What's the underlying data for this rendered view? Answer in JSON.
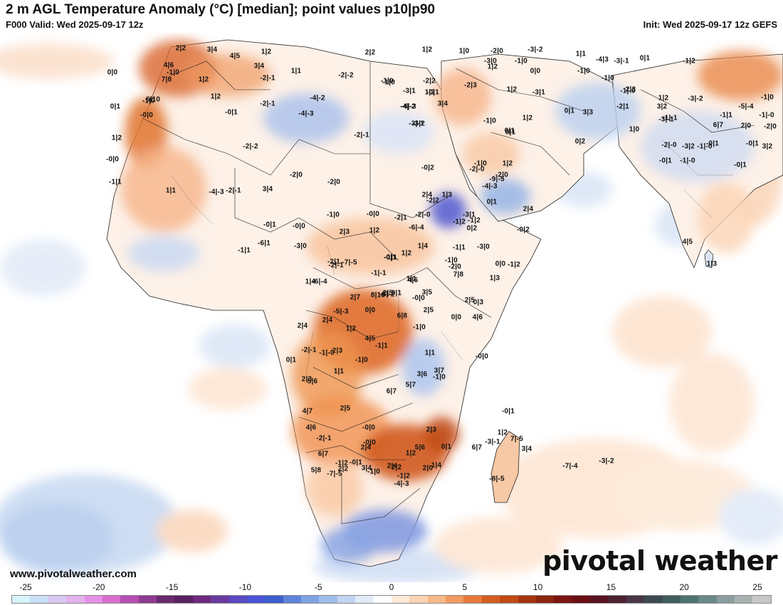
{
  "header": {
    "title": "2 m AGL Temperature Anomaly (°C) [median]; point values p10|p90",
    "valid": "F000 Valid: Wed 2025-09-17 12z",
    "init": "Init: Wed 2025-09-17 12z GEFS"
  },
  "footer": {
    "website": "www.pivotalweather.com",
    "logo": "pivotal weather"
  },
  "colorbar": {
    "ticks": [
      "-25",
      "-20",
      "-15",
      "-10",
      "-5",
      "0",
      "5",
      "10",
      "15",
      "20",
      "25"
    ],
    "colors": [
      "#d6f5fb",
      "#c8dff7",
      "#d7c9f2",
      "#e3b3ee",
      "#e491e6",
      "#d86fcf",
      "#b54fb2",
      "#8e3a8f",
      "#6a2a6e",
      "#5a2063",
      "#6e2a7e",
      "#6a3aa0",
      "#5b49c2",
      "#4b56d6",
      "#3f5fcc",
      "#5f83da",
      "#7ea3e3",
      "#a0bdec",
      "#c2d5f2",
      "#e2ebf8",
      "#ffffff",
      "#fde9d8",
      "#fbd3b3",
      "#f8b98a",
      "#f19a62",
      "#e57a3b",
      "#d45e22",
      "#c14a15",
      "#a53410",
      "#8c2410",
      "#7a1512",
      "#6a0f14",
      "#5a1222",
      "#4d2233",
      "#4a3646",
      "#3d4a52",
      "#3f5d5d",
      "#4d7471",
      "#6a8a86",
      "#8b9d9c",
      "#a9b2b2",
      "#c7c7c7"
    ]
  },
  "map": {
    "point_values": [
      "2|2",
      "3|4",
      "4|5",
      "1|2",
      "2|2",
      "1|2",
      "1|0",
      "-2|0",
      "-3|-2",
      "1|1",
      "0|1",
      "0|0",
      "-1|0",
      "4|6",
      "3|4",
      "1|1",
      "-2|-2",
      "-1|0",
      "-2|2",
      "1|2",
      "-3|0",
      "-1|0",
      "-4|3",
      "-3|-1",
      "0|0",
      "1|2",
      "-1|0",
      "7|8",
      "1|2",
      "-2|-1",
      "-1|0",
      "-3|1",
      "-0|1",
      "-2|3",
      "1|2",
      "-3|1",
      "-1|0",
      "2|3",
      "1|2",
      "-3|-2",
      "-5|-4",
      "-1|0",
      "-1|2",
      "-4|-2",
      "3|4",
      "-4|-3",
      "1|2",
      "-1|0",
      "0|1",
      "-3|2",
      "6|10",
      "-2|-1",
      "-0|1",
      "-4|-3",
      "-4|-2",
      "-3|-1",
      "1|2",
      "0|1",
      "3|3",
      "0|1",
      "-1|-0",
      "1|0",
      "-1|1",
      "2|0",
      "3|2",
      "6|7",
      "-0|0",
      "-1|0",
      "0|1",
      "1|2",
      "0|2",
      "-2|-1",
      "-2|-2",
      "-0|0",
      "-0|1",
      "-2|1",
      "-1|-1",
      "-0|1",
      "-0|1",
      "-2|0",
      "-1|-0",
      "-2|-0",
      "-0|1",
      "-3|-1",
      "-1|-0",
      "3|2",
      "-3|2",
      "-1|-0",
      "1|1",
      "-2|-1",
      "3|4",
      "-2|0",
      "-2|0",
      "-1|1",
      "-0|2",
      "1|2",
      "-1|0",
      "-2|-0",
      "0|1",
      "2|4",
      "-2|0",
      "-2|-0",
      "-9|-5",
      "-4|-3",
      "-4|-3",
      "-1|0",
      "-0|0",
      "-2|1",
      "2|4",
      "-2|2",
      "1|3",
      "0|2",
      "-0|2",
      "-1|2",
      "-6|-4",
      "-3|1",
      "-1|2",
      "-0|1",
      "-0|0",
      "2|3",
      "1|2",
      "1|2",
      "1|4",
      "-1|1",
      "-1|0",
      "0|0",
      "-1|2",
      "-3|0",
      "-1|1",
      "-6|1",
      "-3|0",
      "-2|1",
      "-7|-5",
      "-6|-4",
      "1|4",
      "-2|-1",
      "-0|1",
      "-1|-1",
      "-2|0",
      "4|5",
      "1|3",
      "-1|1",
      "4|6",
      "7|8",
      "1|1",
      "1|3",
      "3|5",
      "8|10",
      "2|5",
      "0|1",
      "-0|0",
      "0|3",
      "2|5",
      "2|7",
      "-5|-3",
      "-6|-2",
      "2|4",
      "0|0",
      "2|5",
      "2|4",
      "-1|0",
      "1|2",
      "-1|-0",
      "4|5",
      "6|8",
      "-2|-1",
      "0|1",
      "1|1",
      "0|0",
      "4|6",
      "2|3",
      "-1|1",
      "-0|0",
      "3|7",
      "2|3",
      "5|6",
      "-1|0",
      "1|1",
      "-1|0",
      "2|5",
      "3|6",
      "4|7",
      "6|7",
      "4|6",
      "5|7",
      "-2|-1",
      "-0|0",
      "2|3",
      "2|4",
      "5|6",
      "6|7",
      "3|4",
      "1|2",
      "6|7",
      "3|4",
      "5|8",
      "2|2",
      "-0|0",
      "0|1",
      "1|2",
      "2|4",
      "1|4",
      "-1|2",
      "-1|2",
      "-0|1",
      "2|2",
      "2|0",
      "-0|1",
      "-3|-1",
      "7|-5",
      "-8|-5",
      "-7|-4",
      "-3|-2",
      "-7|-5",
      "-1|0",
      "-4|-3"
    ]
  }
}
